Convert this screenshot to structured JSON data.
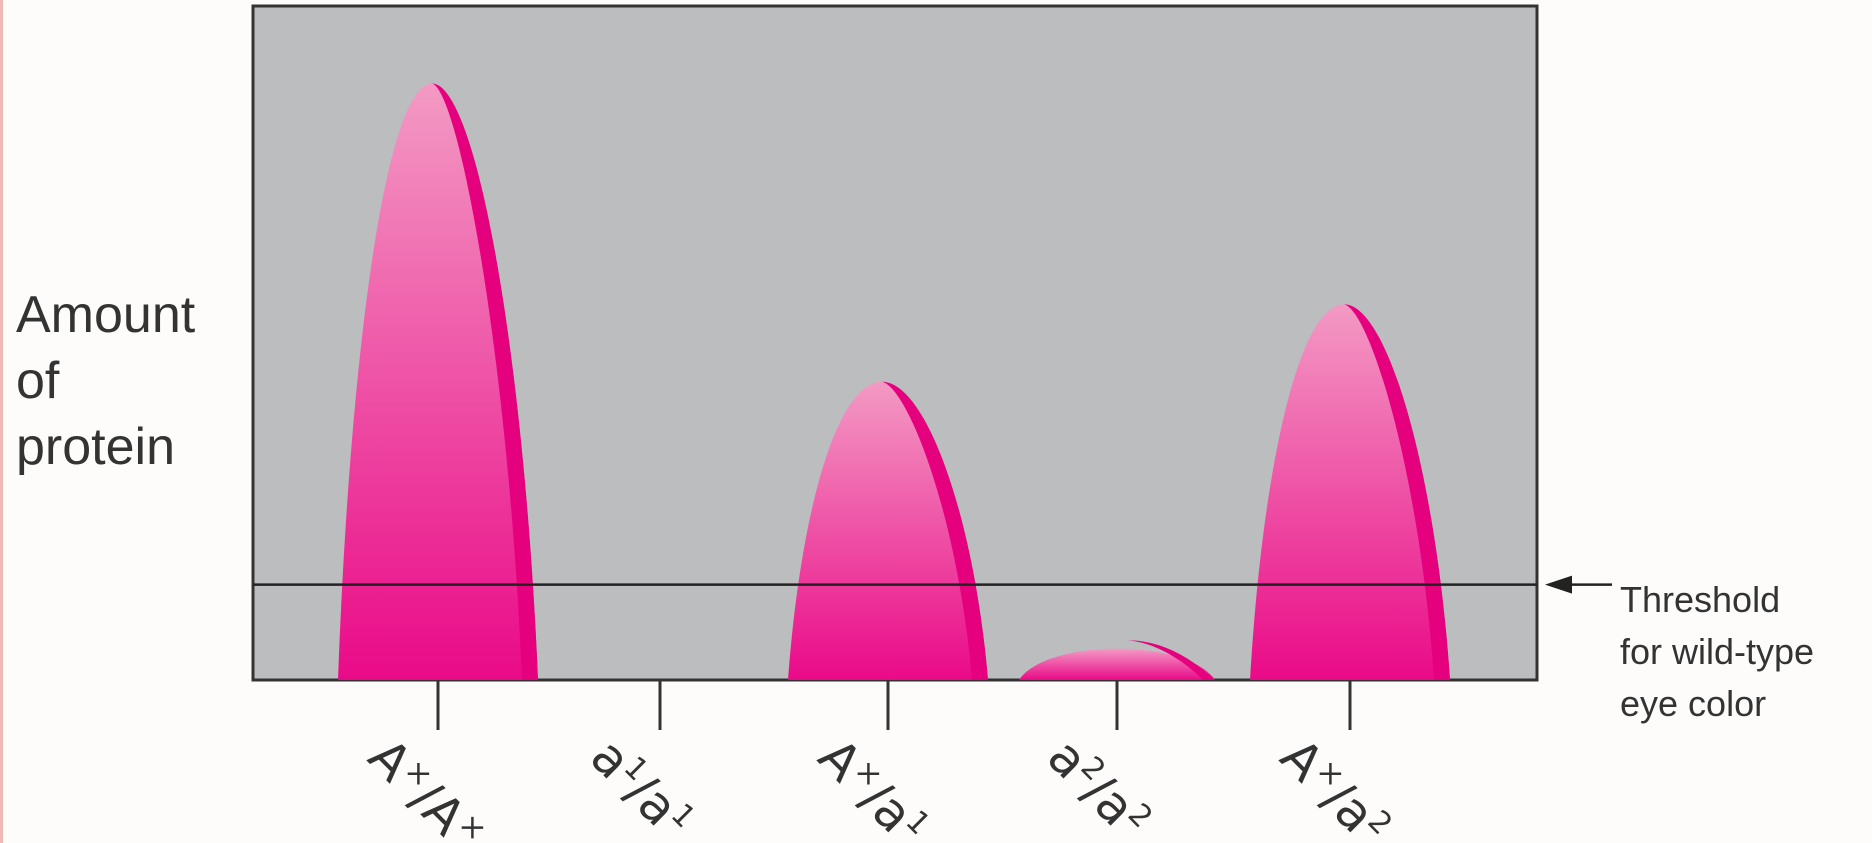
{
  "chart_data": {
    "type": "bar",
    "categories": [
      "Aˣ/Aˣ",
      "a¹/a¹",
      "Aˣ/a¹",
      "a²/a²",
      "Aˣ/a²"
    ],
    "category_parts": [
      {
        "g1": "A",
        "s1": "×",
        "g2": "A",
        "s2": "×"
      },
      {
        "g1": "a",
        "s1": "1",
        "g2": "a",
        "s2": "1"
      },
      {
        "g1": "A",
        "s1": "×",
        "g2": "a",
        "s2": "1"
      },
      {
        "g1": "a",
        "s1": "2",
        "g2": "a",
        "s2": "2"
      },
      {
        "g1": "A",
        "s1": "×",
        "g2": "a",
        "s2": "2"
      }
    ],
    "values": [
      1.0,
      0.0,
      0.5,
      0.07,
      0.63
    ],
    "threshold": 0.16,
    "ylim": [
      0,
      1.13
    ],
    "ylabel_lines": [
      "Amount",
      "of",
      "protein"
    ],
    "threshold_label_lines": [
      "Threshold",
      "for wild-type",
      "eye color"
    ],
    "colors": {
      "panel": "#bcbdbf",
      "peak_top": "#f39ac4",
      "peak_bottom": "#ea0a88",
      "peak_edge": "#e5007e",
      "axis": "#333333"
    }
  }
}
